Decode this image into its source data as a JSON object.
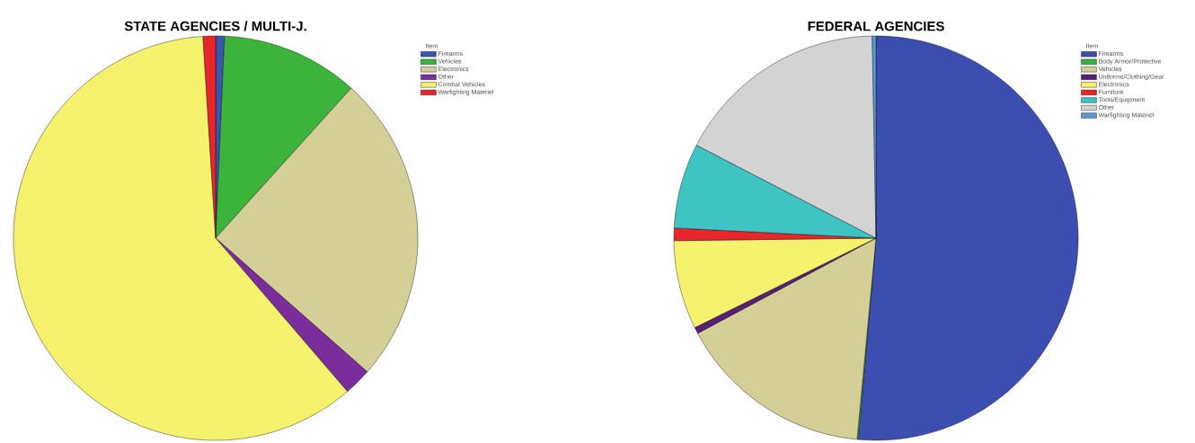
{
  "chart_data": [
    {
      "type": "pie",
      "title": "STATE AGENCIES / MULTI-J.",
      "legend_title": "Item",
      "legend": "right",
      "categories": [
        "Firearms",
        "Vehicles",
        "Electronics",
        "Other",
        "Combat Vehicles",
        "Warfighting Materiel"
      ],
      "values": [
        0.7,
        11.0,
        24.8,
        2.2,
        60.3,
        1.0
      ],
      "colors": [
        "#3b56b0",
        "#3cb43c",
        "#d4cf96",
        "#7b2d9b",
        "#f5f26e",
        "#e8262c"
      ]
    },
    {
      "type": "pie",
      "title": "FEDERAL AGENCIES",
      "legend_title": "Item",
      "legend": "right",
      "categories": [
        "Firearms",
        "Body Armor/Protective",
        "Vehicles",
        "Uniforms/Clothing/Gear",
        "Electronics",
        "Furniture",
        "Tools/Equipment",
        "Other",
        "Warfighting Materiel"
      ],
      "values": [
        51.4,
        0.1,
        15.7,
        0.5,
        7.1,
        1.0,
        6.8,
        17.1,
        0.3
      ],
      "colors": [
        "#3c4fb0",
        "#3cb43c",
        "#d4cf96",
        "#5a1f7a",
        "#f5f26e",
        "#e8262c",
        "#3fc4c4",
        "#d3d3d3",
        "#5b9bd5"
      ]
    }
  ]
}
